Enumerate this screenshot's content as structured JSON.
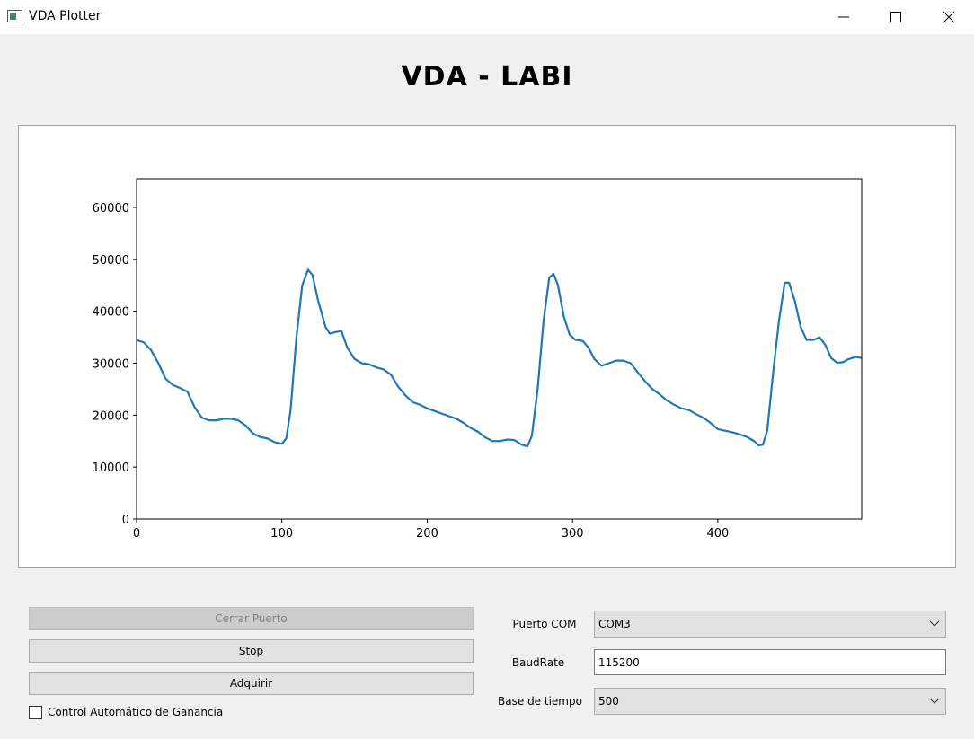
{
  "window": {
    "title": "VDA Plotter"
  },
  "header": {
    "title": "VDA - LABI"
  },
  "chart_data": {
    "type": "line",
    "color": "#1f77b4",
    "x": [
      0,
      5,
      10,
      15,
      20,
      25,
      30,
      35,
      40,
      45,
      50,
      55,
      60,
      65,
      70,
      75,
      80,
      85,
      90,
      95,
      100,
      103,
      106,
      110,
      114,
      118,
      121,
      125,
      130,
      133,
      137,
      141,
      145,
      150,
      155,
      160,
      165,
      170,
      175,
      180,
      185,
      190,
      195,
      200,
      205,
      210,
      215,
      220,
      225,
      230,
      235,
      240,
      245,
      250,
      255,
      260,
      265,
      269,
      272,
      276,
      280,
      284,
      287,
      290,
      294,
      298,
      302,
      307,
      311,
      315,
      320,
      325,
      330,
      335,
      340,
      345,
      350,
      355,
      360,
      365,
      370,
      375,
      380,
      385,
      390,
      395,
      400,
      405,
      410,
      415,
      420,
      425,
      428,
      431,
      434,
      438,
      442,
      446,
      449,
      453,
      457,
      461,
      466,
      470,
      474,
      478,
      482,
      486,
      490,
      495,
      499
    ],
    "values": [
      34500,
      34000,
      32500,
      30000,
      27000,
      25800,
      25200,
      24500,
      21500,
      19500,
      19000,
      19000,
      19300,
      19300,
      19000,
      18000,
      16500,
      15800,
      15500,
      14800,
      14500,
      15500,
      21000,
      35000,
      45000,
      48000,
      47000,
      42000,
      37000,
      35700,
      36000,
      36200,
      33000,
      30800,
      30000,
      29800,
      29200,
      28800,
      27800,
      25500,
      23800,
      22500,
      22000,
      21300,
      20800,
      20300,
      19800,
      19300,
      18500,
      17500,
      16800,
      15700,
      15000,
      15000,
      15300,
      15200,
      14300,
      14000,
      16000,
      25000,
      38000,
      46500,
      47200,
      45000,
      39000,
      35500,
      34500,
      34300,
      33000,
      30800,
      29500,
      30000,
      30500,
      30500,
      30000,
      28200,
      26500,
      25000,
      24000,
      22800,
      22000,
      21300,
      21000,
      20200,
      19500,
      18500,
      17300,
      17000,
      16700,
      16300,
      15800,
      15000,
      14200,
      14300,
      17000,
      28000,
      38000,
      45500,
      45500,
      42000,
      37000,
      34500,
      34500,
      35000,
      33500,
      31000,
      30100,
      30200,
      30800,
      31200,
      31000
    ],
    "xlim": [
      0,
      499
    ],
    "ylim": [
      0,
      65535
    ],
    "xticks": [
      0,
      100,
      200,
      300,
      400
    ],
    "yticks": [
      0,
      10000,
      20000,
      30000,
      40000,
      50000,
      60000
    ]
  },
  "controls": {
    "buttons": [
      "Cerrar Puerto",
      "Stop",
      "Adquirir"
    ],
    "checkbox": "Control Automático de Ganancia",
    "fields": [
      {
        "label": "Puerto COM",
        "value": "COM3"
      },
      {
        "label": "BaudRate",
        "value": "115200"
      },
      {
        "label": "Base de tiempo",
        "value": "500"
      }
    ]
  }
}
